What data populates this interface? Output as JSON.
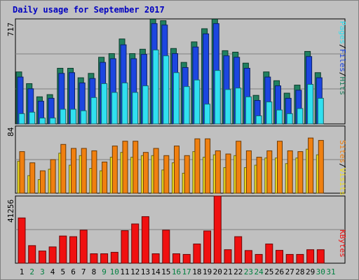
{
  "title": "Daily usage for September 2017",
  "colors": {
    "hits": "#208060",
    "files": "#1c46e0",
    "pages": "#30e0f0",
    "visits": "#f0e020",
    "sites": "#f08010",
    "kbytes": "#f01010",
    "title": "#0000c0",
    "day_weekday": "#000000",
    "day_weekend": "#008040"
  },
  "chart_data": [
    {
      "type": "bar",
      "title": "Daily usage for September 2017",
      "ymax_label": "717",
      "ylim": [
        0,
        717
      ],
      "legend": [
        "Pages",
        "Files",
        "Hits"
      ],
      "categories": [
        "1",
        "2",
        "3",
        "4",
        "5",
        "6",
        "7",
        "8",
        "9",
        "10",
        "11",
        "12",
        "13",
        "14",
        "15",
        "16",
        "17",
        "18",
        "19",
        "20",
        "21",
        "22",
        "23",
        "24",
        "25",
        "26",
        "27",
        "28",
        "29",
        "30",
        "31"
      ],
      "series": [
        {
          "name": "Hits",
          "values": [
            355,
            275,
            185,
            200,
            380,
            380,
            315,
            345,
            455,
            480,
            580,
            480,
            510,
            715,
            705,
            515,
            420,
            560,
            650,
            715,
            500,
            490,
            415,
            195,
            355,
            295,
            210,
            265,
            495,
            350,
            0
          ]
        },
        {
          "name": "Files",
          "values": [
            320,
            240,
            155,
            175,
            345,
            350,
            280,
            310,
            420,
            445,
            540,
            445,
            475,
            685,
            675,
            480,
            385,
            525,
            615,
            685,
            465,
            455,
            380,
            160,
            320,
            260,
            175,
            230,
            460,
            315,
            0
          ]
        },
        {
          "name": "Pages",
          "values": [
            70,
            80,
            40,
            40,
            100,
            100,
            90,
            180,
            275,
            215,
            280,
            215,
            260,
            505,
            465,
            350,
            255,
            300,
            135,
            365,
            235,
            245,
            185,
            55,
            150,
            95,
            70,
            105,
            270,
            175,
            0
          ]
        }
      ]
    },
    {
      "type": "bar",
      "ymax_label": "84",
      "ylim": [
        0,
        84
      ],
      "legend": [
        "Sites",
        "Visits"
      ],
      "categories": [
        "1",
        "2",
        "3",
        "4",
        "5",
        "6",
        "7",
        "8",
        "9",
        "10",
        "11",
        "12",
        "13",
        "14",
        "15",
        "16",
        "17",
        "18",
        "19",
        "20",
        "21",
        "22",
        "23",
        "24",
        "25",
        "26",
        "27",
        "28",
        "29",
        "30",
        "31"
      ],
      "series": [
        {
          "name": "Sites",
          "values": [
            52,
            38,
            28,
            42,
            61,
            56,
            56,
            53,
            39,
            59,
            65,
            65,
            51,
            56,
            47,
            59,
            47,
            68,
            68,
            53,
            49,
            65,
            53,
            45,
            53,
            65,
            53,
            52,
            69,
            66,
            0
          ]
        },
        {
          "name": "Visits",
          "values": [
            40,
            22,
            17,
            30,
            50,
            35,
            47,
            31,
            28,
            45,
            51,
            45,
            47,
            47,
            29,
            38,
            25,
            52,
            45,
            48,
            32,
            47,
            32,
            35,
            44,
            44,
            37,
            44,
            55,
            48,
            0
          ]
        }
      ]
    },
    {
      "type": "bar",
      "ymax_label": "41256",
      "ylim": [
        0,
        41256
      ],
      "legend": [
        "KBytes"
      ],
      "categories": [
        "1",
        "2",
        "3",
        "4",
        "5",
        "6",
        "7",
        "8",
        "9",
        "10",
        "11",
        "12",
        "13",
        "14",
        "15",
        "16",
        "17",
        "18",
        "19",
        "20",
        "21",
        "22",
        "23",
        "24",
        "25",
        "26",
        "27",
        "28",
        "29",
        "30",
        "31"
      ],
      "series": [
        {
          "name": "KBytes",
          "values": [
            27800,
            10800,
            7500,
            10000,
            16700,
            16300,
            20300,
            5800,
            5800,
            6700,
            20000,
            24100,
            28600,
            5800,
            20300,
            5800,
            5400,
            11800,
            19800,
            41256,
            8300,
            16300,
            7800,
            5400,
            11800,
            7900,
            5400,
            5400,
            8300,
            8300,
            0
          ]
        }
      ]
    }
  ]
}
